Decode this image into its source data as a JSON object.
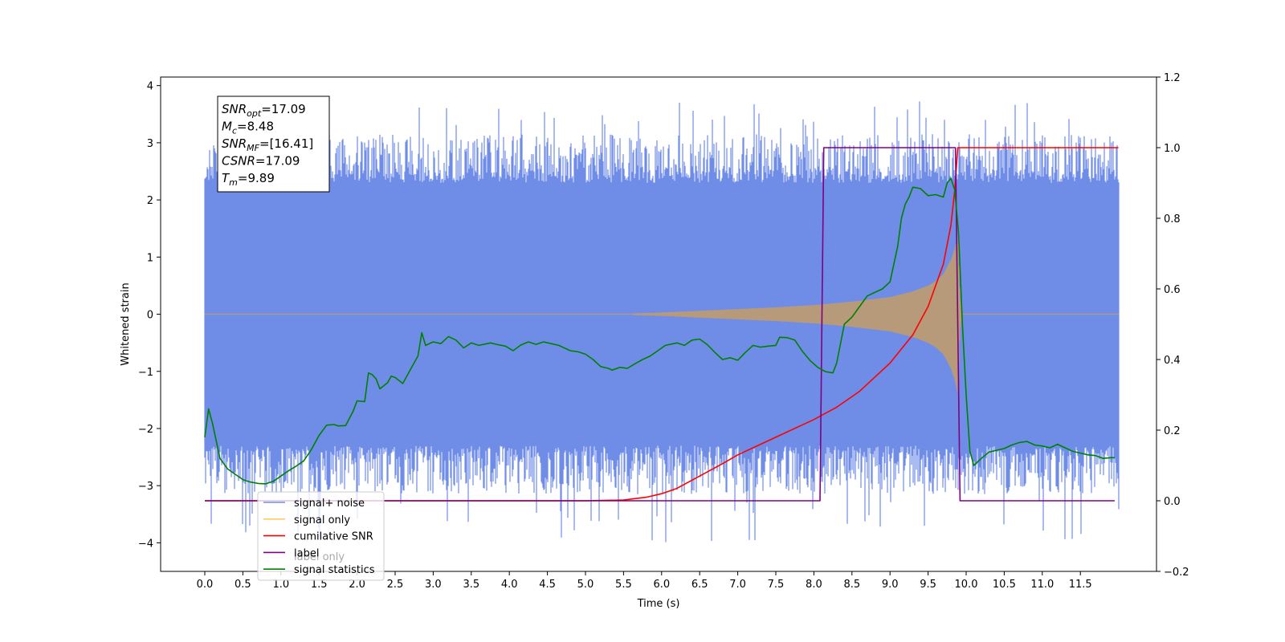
{
  "chart_data": {
    "type": "line",
    "xlabel": "Time (s)",
    "ylabel": "Whitened strain",
    "xlim": [
      -0.58,
      12.5
    ],
    "ylim": [
      -4.5,
      4.15
    ],
    "y2lim": [
      -0.2,
      1.2
    ],
    "x_ticks": [
      0.0,
      0.5,
      1.0,
      1.5,
      2.0,
      2.5,
      3.0,
      3.5,
      4.0,
      4.5,
      5.0,
      5.5,
      6.0,
      6.5,
      7.0,
      7.5,
      8.0,
      8.5,
      9.0,
      9.5,
      10.0,
      10.5,
      11.0,
      11.5
    ],
    "x_tick_labels": [
      "0.0",
      "0.5",
      "1.0",
      "1.5",
      "2.0",
      "2.5",
      "3.0",
      "3.5",
      "4.0",
      "4.5",
      "5.0",
      "5.5",
      "6.0",
      "6.5",
      "7.0",
      "7.5",
      "8.0",
      "8.5",
      "9.0",
      "9.5",
      "10.0",
      "10.5",
      "11.0",
      "11.5"
    ],
    "y_ticks": [
      -4,
      -3,
      -2,
      -1,
      0,
      1,
      2,
      3,
      4
    ],
    "y_tick_labels": [
      "−4",
      "−3",
      "−2",
      "−1",
      "0",
      "1",
      "2",
      "3",
      "4"
    ],
    "y2_ticks": [
      -0.2,
      0.0,
      0.2,
      0.4,
      0.6,
      0.8,
      1.0,
      1.2
    ],
    "y2_tick_labels": [
      "−0.2",
      "0.0",
      "0.2",
      "0.4",
      "0.6",
      "0.8",
      "1.0",
      "1.2"
    ],
    "legend": {
      "placement": "lower-left",
      "entries": [
        {
          "label": "signal+ noise",
          "color": "#6f8de6"
        },
        {
          "label": "signal only",
          "color": "#ffc966"
        },
        {
          "label": "cumilative SNR",
          "color": "#ff0000"
        },
        {
          "label": "label",
          "color": "#800080"
        },
        {
          "label": "signal statistics",
          "color": "#008000"
        }
      ],
      "ghost_text": "label only"
    },
    "annotation": {
      "placement": "top-left",
      "lines": [
        {
          "sym": "SNR",
          "sub": "opt",
          "val": "=17.09"
        },
        {
          "sym": "M",
          "sub": "c",
          "val": "=8.48"
        },
        {
          "sym": "SNR",
          "sub": "MF",
          "val": "=[16.41]"
        },
        {
          "sym": "CSNR",
          "sub": "",
          "val": "=17.09"
        },
        {
          "sym": "T",
          "sub": "m",
          "val": "=9.89"
        }
      ]
    },
    "series": [
      {
        "name": "signal+ noise",
        "axis": "left",
        "color": "#6f8de6",
        "kind": "noise_band",
        "x_range": [
          0.0,
          12.0
        ],
        "envelope_approx": {
          "core": 1.5,
          "typical_peak": 2.6,
          "max": 3.75,
          "min": -4.0
        }
      },
      {
        "name": "signal only",
        "axis": "left",
        "color": "#e6b873",
        "kind": "chirp",
        "x_range": [
          0.0,
          12.0
        ],
        "merger_time": 9.89,
        "envelope": [
          [
            0,
            0
          ],
          [
            5.5,
            0.01
          ],
          [
            6.0,
            0.03
          ],
          [
            6.5,
            0.06
          ],
          [
            7.0,
            0.09
          ],
          [
            7.5,
            0.12
          ],
          [
            8.0,
            0.16
          ],
          [
            8.5,
            0.22
          ],
          [
            9.0,
            0.3
          ],
          [
            9.3,
            0.4
          ],
          [
            9.5,
            0.5
          ],
          [
            9.6,
            0.58
          ],
          [
            9.7,
            0.7
          ],
          [
            9.8,
            0.95
          ],
          [
            9.85,
            1.15
          ],
          [
            9.89,
            1.4
          ],
          [
            9.92,
            0.3
          ],
          [
            9.95,
            0.0
          ],
          [
            12.0,
            0.0
          ]
        ]
      },
      {
        "name": "cumilative SNR",
        "axis": "right",
        "color": "#ff0000",
        "points": [
          [
            0,
            0
          ],
          [
            5.0,
            0
          ],
          [
            5.5,
            0.002
          ],
          [
            5.8,
            0.01
          ],
          [
            6.0,
            0.02
          ],
          [
            6.2,
            0.035
          ],
          [
            6.5,
            0.07
          ],
          [
            6.8,
            0.105
          ],
          [
            7.0,
            0.13
          ],
          [
            7.3,
            0.16
          ],
          [
            7.6,
            0.19
          ],
          [
            8.0,
            0.23
          ],
          [
            8.3,
            0.265
          ],
          [
            8.6,
            0.31
          ],
          [
            9.0,
            0.39
          ],
          [
            9.3,
            0.47
          ],
          [
            9.5,
            0.55
          ],
          [
            9.7,
            0.67
          ],
          [
            9.8,
            0.78
          ],
          [
            9.85,
            0.88
          ],
          [
            9.89,
            1.0
          ],
          [
            12.0,
            1.0
          ]
        ]
      },
      {
        "name": "label",
        "axis": "right",
        "color": "#800080",
        "points": [
          [
            0,
            0
          ],
          [
            8.08,
            0
          ],
          [
            8.13,
            1.0
          ],
          [
            9.86,
            1.0
          ],
          [
            9.92,
            0
          ],
          [
            11.95,
            0
          ]
        ]
      },
      {
        "name": "signal statistics",
        "axis": "right",
        "color": "#008000",
        "points": [
          [
            0.0,
            0.18
          ],
          [
            0.05,
            0.26
          ],
          [
            0.1,
            0.22
          ],
          [
            0.2,
            0.12
          ],
          [
            0.3,
            0.09
          ],
          [
            0.4,
            0.075
          ],
          [
            0.5,
            0.06
          ],
          [
            0.6,
            0.053
          ],
          [
            0.7,
            0.049
          ],
          [
            0.8,
            0.048
          ],
          [
            0.9,
            0.055
          ],
          [
            1.0,
            0.07
          ],
          [
            1.1,
            0.085
          ],
          [
            1.2,
            0.098
          ],
          [
            1.3,
            0.113
          ],
          [
            1.4,
            0.145
          ],
          [
            1.5,
            0.185
          ],
          [
            1.6,
            0.214
          ],
          [
            1.7,
            0.216
          ],
          [
            1.75,
            0.212
          ],
          [
            1.85,
            0.213
          ],
          [
            1.95,
            0.254
          ],
          [
            2.0,
            0.283
          ],
          [
            2.1,
            0.281
          ],
          [
            2.15,
            0.362
          ],
          [
            2.2,
            0.357
          ],
          [
            2.25,
            0.345
          ],
          [
            2.3,
            0.317
          ],
          [
            2.4,
            0.334
          ],
          [
            2.45,
            0.353
          ],
          [
            2.5,
            0.349
          ],
          [
            2.6,
            0.332
          ],
          [
            2.7,
            0.371
          ],
          [
            2.8,
            0.41
          ],
          [
            2.85,
            0.476
          ],
          [
            2.9,
            0.44
          ],
          [
            3.0,
            0.45
          ],
          [
            3.1,
            0.445
          ],
          [
            3.2,
            0.465
          ],
          [
            3.3,
            0.455
          ],
          [
            3.4,
            0.433
          ],
          [
            3.5,
            0.447
          ],
          [
            3.6,
            0.44
          ],
          [
            3.75,
            0.447
          ],
          [
            3.85,
            0.442
          ],
          [
            3.95,
            0.438
          ],
          [
            4.05,
            0.425
          ],
          [
            4.15,
            0.441
          ],
          [
            4.25,
            0.45
          ],
          [
            4.35,
            0.443
          ],
          [
            4.45,
            0.45
          ],
          [
            4.55,
            0.445
          ],
          [
            4.65,
            0.44
          ],
          [
            4.8,
            0.425
          ],
          [
            4.9,
            0.422
          ],
          [
            5.0,
            0.415
          ],
          [
            5.1,
            0.4
          ],
          [
            5.2,
            0.38
          ],
          [
            5.3,
            0.375
          ],
          [
            5.35,
            0.37
          ],
          [
            5.45,
            0.378
          ],
          [
            5.55,
            0.375
          ],
          [
            5.65,
            0.388
          ],
          [
            5.75,
            0.4
          ],
          [
            5.85,
            0.41
          ],
          [
            5.95,
            0.425
          ],
          [
            6.05,
            0.44
          ],
          [
            6.2,
            0.447
          ],
          [
            6.3,
            0.44
          ],
          [
            6.4,
            0.455
          ],
          [
            6.5,
            0.458
          ],
          [
            6.6,
            0.442
          ],
          [
            6.7,
            0.42
          ],
          [
            6.8,
            0.4
          ],
          [
            6.9,
            0.405
          ],
          [
            7.0,
            0.398
          ],
          [
            7.1,
            0.42
          ],
          [
            7.2,
            0.44
          ],
          [
            7.3,
            0.435
          ],
          [
            7.4,
            0.438
          ],
          [
            7.5,
            0.44
          ],
          [
            7.55,
            0.463
          ],
          [
            7.65,
            0.462
          ],
          [
            7.75,
            0.455
          ],
          [
            7.85,
            0.423
          ],
          [
            7.95,
            0.397
          ],
          [
            8.05,
            0.378
          ],
          [
            8.15,
            0.366
          ],
          [
            8.25,
            0.362
          ],
          [
            8.3,
            0.39
          ],
          [
            8.4,
            0.5
          ],
          [
            8.5,
            0.52
          ],
          [
            8.6,
            0.55
          ],
          [
            8.7,
            0.58
          ],
          [
            8.8,
            0.59
          ],
          [
            8.9,
            0.6
          ],
          [
            9.0,
            0.62
          ],
          [
            9.1,
            0.72
          ],
          [
            9.15,
            0.8
          ],
          [
            9.2,
            0.84
          ],
          [
            9.25,
            0.86
          ],
          [
            9.3,
            0.888
          ],
          [
            9.4,
            0.884
          ],
          [
            9.5,
            0.864
          ],
          [
            9.6,
            0.867
          ],
          [
            9.7,
            0.86
          ],
          [
            9.75,
            0.9
          ],
          [
            9.8,
            0.913
          ],
          [
            9.85,
            0.88
          ],
          [
            9.9,
            0.76
          ],
          [
            9.95,
            0.5
          ],
          [
            10.0,
            0.3
          ],
          [
            10.05,
            0.14
          ],
          [
            10.1,
            0.1
          ],
          [
            10.2,
            0.12
          ],
          [
            10.3,
            0.138
          ],
          [
            10.4,
            0.143
          ],
          [
            10.5,
            0.148
          ],
          [
            10.6,
            0.158
          ],
          [
            10.7,
            0.165
          ],
          [
            10.8,
            0.168
          ],
          [
            10.9,
            0.158
          ],
          [
            11.0,
            0.155
          ],
          [
            11.1,
            0.15
          ],
          [
            11.2,
            0.16
          ],
          [
            11.3,
            0.15
          ],
          [
            11.4,
            0.14
          ],
          [
            11.5,
            0.135
          ],
          [
            11.6,
            0.13
          ],
          [
            11.7,
            0.128
          ],
          [
            11.8,
            0.12
          ],
          [
            11.9,
            0.122
          ],
          [
            11.95,
            0.122
          ]
        ]
      }
    ]
  }
}
